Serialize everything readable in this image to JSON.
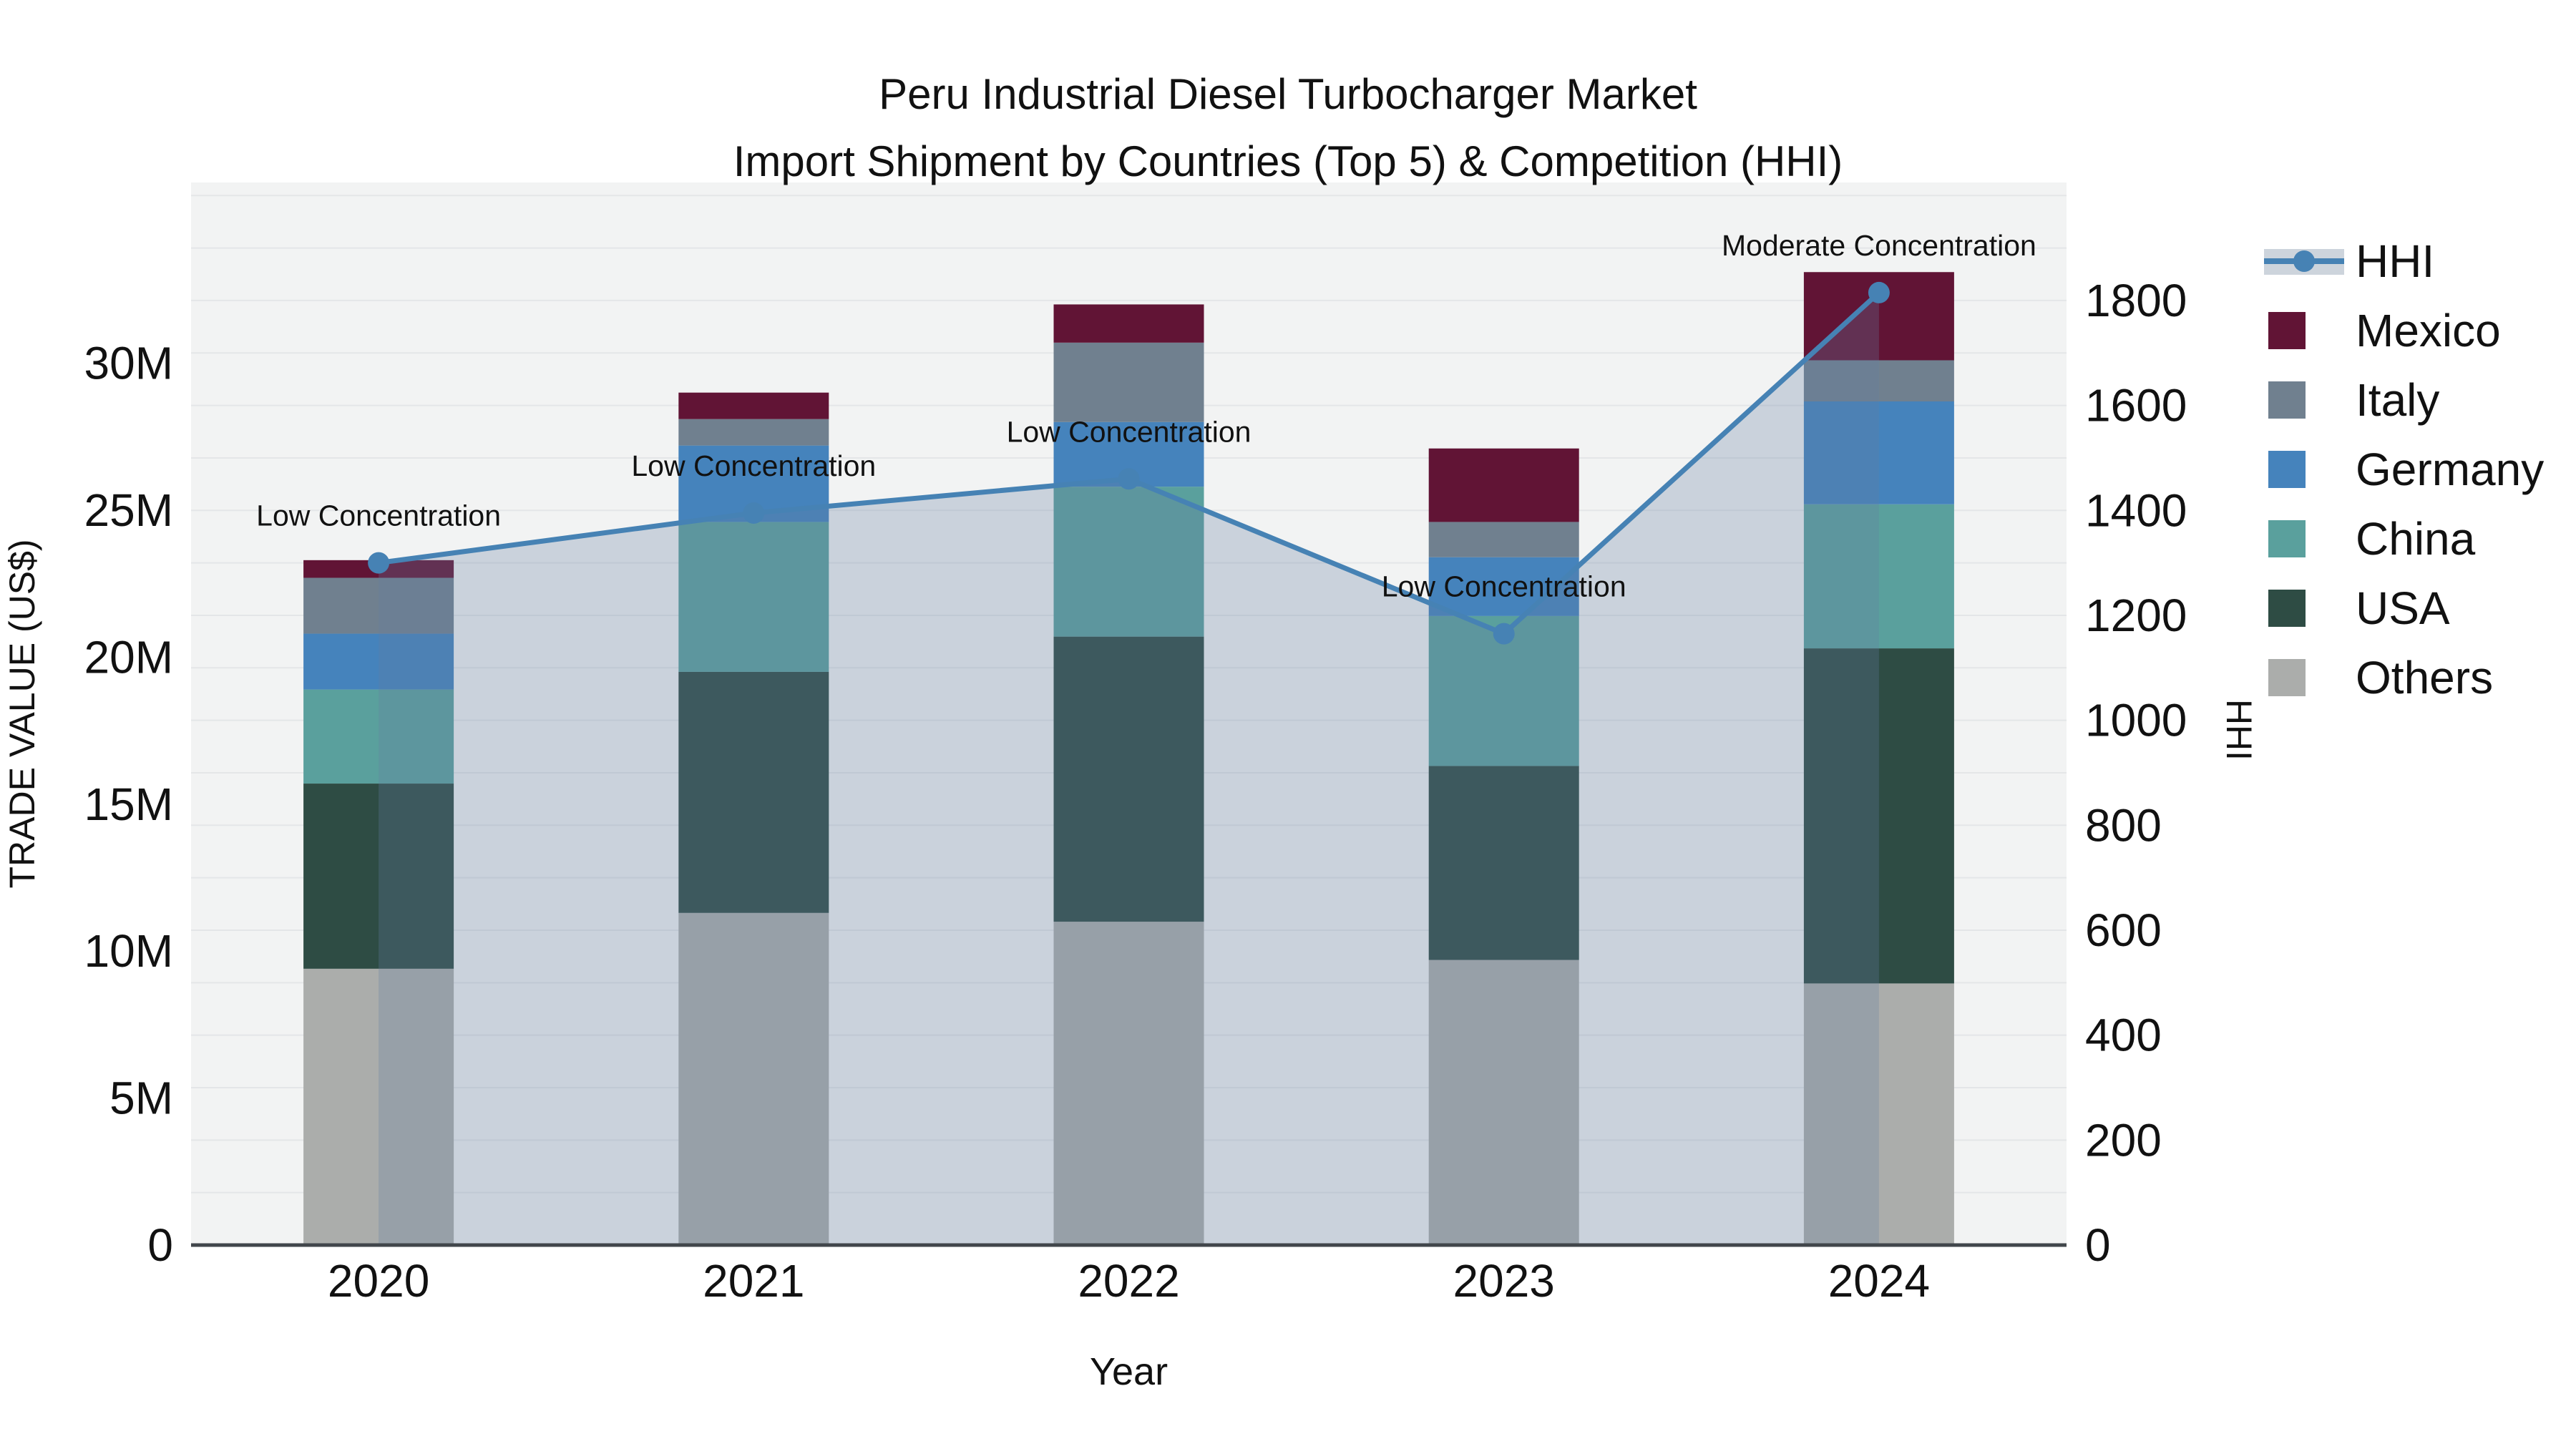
{
  "title": {
    "line1": "Peru Industrial Diesel Turbocharger Market",
    "line2": "Import Shipment by Countries (Top 5) & Competition (HHI)"
  },
  "axes": {
    "x": {
      "title": "Year",
      "categories": [
        "2020",
        "2021",
        "2022",
        "2023",
        "2024"
      ]
    },
    "y_left": {
      "title": "TRADE VALUE (US$)",
      "ticks": [
        {
          "label": "0",
          "value": 0
        },
        {
          "label": "5M",
          "value": 5
        },
        {
          "label": "10M",
          "value": 10
        },
        {
          "label": "15M",
          "value": 15
        },
        {
          "label": "20M",
          "value": 20
        },
        {
          "label": "25M",
          "value": 25
        },
        {
          "label": "30M",
          "value": 30
        }
      ]
    },
    "y_right": {
      "title": "HHI",
      "ticks": [
        {
          "label": "0",
          "value": 0
        },
        {
          "label": "200",
          "value": 200
        },
        {
          "label": "400",
          "value": 400
        },
        {
          "label": "600",
          "value": 600
        },
        {
          "label": "800",
          "value": 800
        },
        {
          "label": "1000",
          "value": 1000
        },
        {
          "label": "1200",
          "value": 1200
        },
        {
          "label": "1400",
          "value": 1400
        },
        {
          "label": "1600",
          "value": 1600
        },
        {
          "label": "1800",
          "value": 1800
        }
      ]
    }
  },
  "legend": {
    "items": [
      {
        "label": "HHI",
        "type": "line",
        "color_key": "hhi_line"
      },
      {
        "label": "Mexico",
        "type": "swatch",
        "color_key": "mexico"
      },
      {
        "label": "Italy",
        "type": "swatch",
        "color_key": "italy"
      },
      {
        "label": "Germany",
        "type": "swatch",
        "color_key": "germany"
      },
      {
        "label": "China",
        "type": "swatch",
        "color_key": "china"
      },
      {
        "label": "USA",
        "type": "swatch",
        "color_key": "usa"
      },
      {
        "label": "Others",
        "type": "swatch",
        "color_key": "others"
      }
    ]
  },
  "colors": {
    "mexico": "#611435",
    "italy": "#70808f",
    "germany": "#4583bc",
    "china": "#5aa09d",
    "usa": "#2e4c44",
    "others": "#abadab",
    "hhi_line": "#4682b4",
    "area_fill": "rgba(100,125,160,0.28)",
    "legend_band": "#cdd4dc",
    "plot_bg": "#f2f3f3",
    "grid": "#e4e6e8",
    "axis_line": "#41464b",
    "text": "#111111"
  },
  "chart_data": {
    "type": "bar",
    "stacked": true,
    "title": "Peru Industrial Diesel Turbocharger Market — Import Shipment by Countries (Top 5) & Competition (HHI)",
    "xlabel": "Year",
    "ylabel_left": "TRADE VALUE (US$)",
    "ylabel_right": "HHI",
    "unit": "million US$",
    "categories": [
      "2020",
      "2021",
      "2022",
      "2023",
      "2024"
    ],
    "series": [
      {
        "name": "Others",
        "values": [
          9.4,
          11.3,
          11.0,
          9.7,
          8.9
        ]
      },
      {
        "name": "USA",
        "values": [
          6.3,
          8.2,
          9.7,
          6.6,
          11.4
        ]
      },
      {
        "name": "China",
        "values": [
          3.2,
          5.1,
          5.1,
          5.1,
          4.9
        ]
      },
      {
        "name": "Germany",
        "values": [
          1.9,
          2.6,
          2.2,
          2.0,
          3.5
        ]
      },
      {
        "name": "Italy",
        "values": [
          1.9,
          0.9,
          2.7,
          1.2,
          1.4
        ]
      },
      {
        "name": "Mexico",
        "values": [
          0.6,
          0.9,
          1.3,
          2.5,
          3.0
        ]
      }
    ],
    "bar_totals": [
      23.3,
      29.0,
      32.0,
      27.1,
      33.1
    ],
    "line_series": {
      "name": "HHI",
      "axis": "right",
      "style": "line+markers+area",
      "values": [
        1300,
        1395,
        1460,
        1165,
        1815
      ]
    },
    "annotations": [
      {
        "x": "2020",
        "text": "Low Concentration"
      },
      {
        "x": "2021",
        "text": "Low Concentration"
      },
      {
        "x": "2022",
        "text": "Low Concentration"
      },
      {
        "x": "2023",
        "text": "Low Concentration"
      },
      {
        "x": "2024",
        "text": "Moderate Concentration"
      }
    ],
    "ylim_left": [
      0,
      36
    ],
    "ylim_right": [
      0,
      2025
    ],
    "grid": true,
    "grid_step_right": 100,
    "legend_position": "right"
  }
}
